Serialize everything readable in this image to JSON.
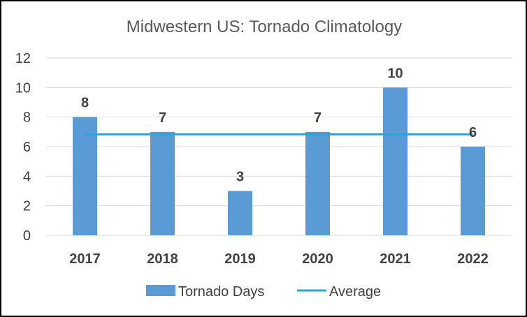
{
  "chart_data": {
    "type": "bar",
    "title": "Midwestern US: Tornado Climatology",
    "xlabel": "",
    "ylabel": "",
    "categories": [
      "2017",
      "2018",
      "2019",
      "2020",
      "2021",
      "2022"
    ],
    "series": [
      {
        "name": "Tornado Days",
        "kind": "bar",
        "values": [
          8,
          7,
          3,
          7,
          10,
          6
        ],
        "color": "#5B9BD5"
      },
      {
        "name": "Average",
        "kind": "line",
        "values": [
          6.83,
          6.83,
          6.83,
          6.83,
          6.83,
          6.83
        ],
        "color": "#1FA9E1"
      }
    ],
    "data_labels": [
      "8",
      "7",
      "3",
      "7",
      "10",
      "6"
    ],
    "ylim": [
      0,
      12
    ],
    "yticks": [
      0,
      2,
      4,
      6,
      8,
      10,
      12
    ],
    "grid": true,
    "legend_position": "bottom",
    "colors": {
      "grid": "#D9D9D9",
      "text": "#404040",
      "title": "#595959"
    }
  }
}
